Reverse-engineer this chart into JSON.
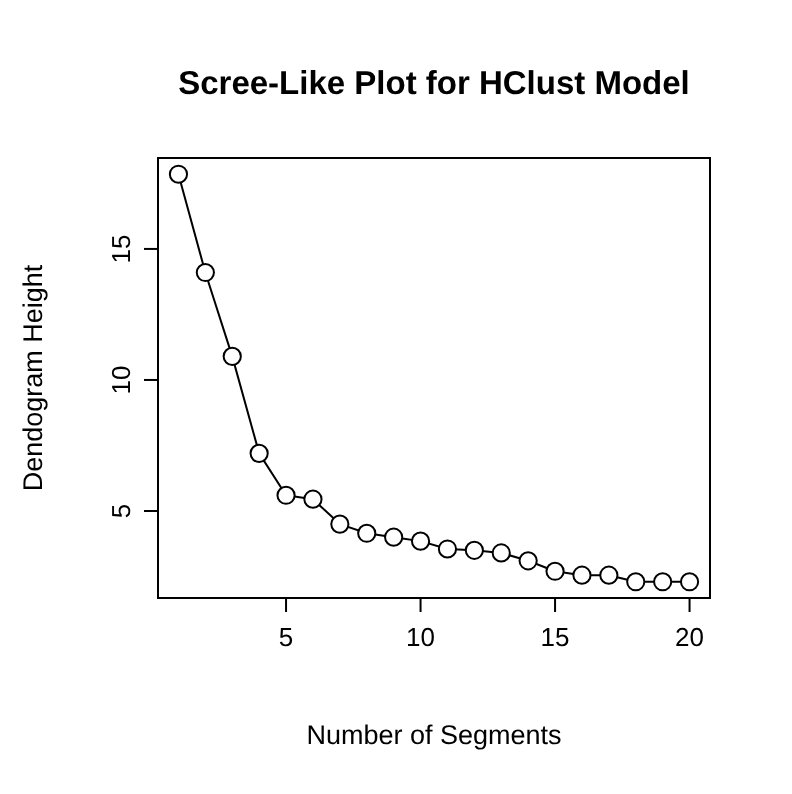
{
  "chart_data": {
    "type": "line",
    "title": "Scree-Like Plot for HClust Model",
    "xlabel": "Number of Segments",
    "ylabel": "Dendogram Height",
    "x": [
      1,
      2,
      3,
      4,
      5,
      6,
      7,
      8,
      9,
      10,
      11,
      12,
      13,
      14,
      15,
      16,
      17,
      18,
      19,
      20
    ],
    "values": [
      17.85,
      14.1,
      10.9,
      7.2,
      5.6,
      5.45,
      4.5,
      4.15,
      4.0,
      3.85,
      3.55,
      3.5,
      3.4,
      3.1,
      2.7,
      2.55,
      2.55,
      2.3,
      2.3,
      2.3
    ],
    "xlim": [
      0.24,
      20.76
    ],
    "ylim": [
      1.68,
      18.47
    ],
    "xticks": [
      5,
      10,
      15,
      20
    ],
    "yticks": [
      5,
      10,
      15
    ],
    "marker": "circle",
    "line_style": "solid",
    "grid": false
  }
}
